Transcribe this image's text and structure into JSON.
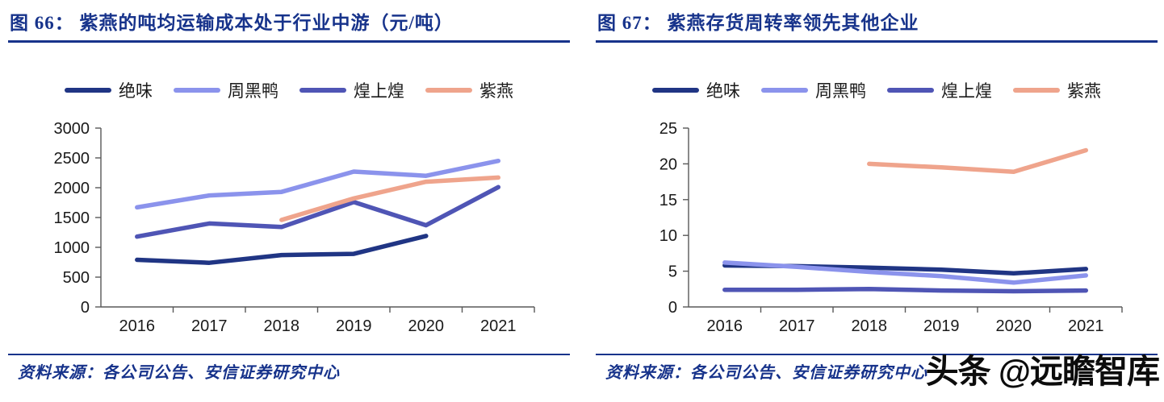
{
  "theme": {
    "title_color": "#17338b",
    "rule_color": "#17338b",
    "source_color": "#17338b",
    "axis_color": "#595959",
    "tick_color": "#1a1a1a",
    "watermark_color": "#0c0c0c"
  },
  "figures": [
    {
      "title": "图 66： 紫燕的吨均运输成本处于行业中游（元/吨）",
      "source": "资料来源：各公司公告、安信证券研究中心"
    },
    {
      "title": "图 67： 紫燕存货周转率领先其他企业",
      "source": "资料来源：各公司公告、安信证券研究中心",
      "watermark": "头条 @远瞻智库"
    }
  ],
  "chart_data": [
    {
      "type": "line",
      "title": "紫燕的吨均运输成本处于行业中游（元/吨）",
      "categories": [
        "2016",
        "2017",
        "2018",
        "2019",
        "2020",
        "2021"
      ],
      "series": [
        {
          "name": "绝味",
          "color": "#203584",
          "values": [
            790,
            740,
            870,
            890,
            1190,
            null
          ]
        },
        {
          "name": "周黑鸭",
          "color": "#8b93ec",
          "values": [
            1670,
            1870,
            1930,
            2270,
            2200,
            2450
          ]
        },
        {
          "name": "煌上煌",
          "color": "#4f55b5",
          "values": [
            1180,
            1400,
            1340,
            1760,
            1370,
            2010
          ]
        },
        {
          "name": "紫燕",
          "color": "#efa48c",
          "values": [
            null,
            null,
            1460,
            1820,
            2100,
            2170
          ]
        }
      ],
      "ylim": [
        0,
        3000
      ],
      "ystep": 500,
      "legend_position": "top",
      "grid": false
    },
    {
      "type": "line",
      "title": "紫燕存货周转率领先其他企业",
      "categories": [
        "2016",
        "2017",
        "2018",
        "2019",
        "2020",
        "2021"
      ],
      "series": [
        {
          "name": "绝味",
          "color": "#203584",
          "values": [
            5.8,
            5.7,
            5.5,
            5.2,
            4.7,
            5.3
          ]
        },
        {
          "name": "周黑鸭",
          "color": "#8b93ec",
          "values": [
            6.2,
            5.6,
            4.9,
            4.3,
            3.4,
            4.4
          ]
        },
        {
          "name": "煌上煌",
          "color": "#4f55b5",
          "values": [
            2.4,
            2.4,
            2.5,
            2.3,
            2.2,
            2.3
          ]
        },
        {
          "name": "紫燕",
          "color": "#efa48c",
          "values": [
            null,
            null,
            20.0,
            19.5,
            18.9,
            21.9
          ]
        }
      ],
      "ylim": [
        0,
        25
      ],
      "ystep": 5,
      "legend_position": "top",
      "grid": false
    }
  ]
}
